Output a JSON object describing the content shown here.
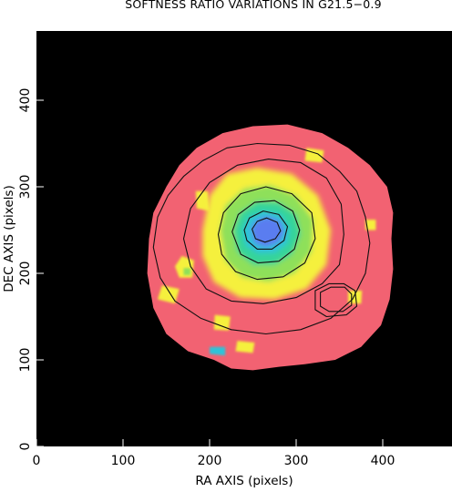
{
  "chart_data": {
    "type": "heatmap",
    "title": "SOFTNESS RATIO VARIATIONS IN G21.5−0.9",
    "xlabel": "RA AXIS (pixels)",
    "ylabel": "DEC AXIS (pixels)",
    "xlim": [
      0,
      480
    ],
    "ylim": [
      0,
      480
    ],
    "xticks": [
      0,
      100,
      200,
      300,
      400
    ],
    "yticks": [
      0,
      100,
      200,
      300,
      400
    ],
    "background_color": "#000000",
    "colormap": [
      {
        "level": "outer",
        "color": "#f26272"
      },
      {
        "level": "low",
        "color": "#f5f03c"
      },
      {
        "level": "mid",
        "color": "#8ee05a"
      },
      {
        "level": "mid-high",
        "color": "#36d49a"
      },
      {
        "level": "high",
        "color": "#2ec3d8"
      },
      {
        "level": "peak",
        "color": "#5a7df0"
      }
    ],
    "remnant_boundary": [
      [
        130,
        240
      ],
      [
        135,
        270
      ],
      [
        150,
        300
      ],
      [
        165,
        325
      ],
      [
        185,
        345
      ],
      [
        215,
        362
      ],
      [
        250,
        370
      ],
      [
        290,
        372
      ],
      [
        330,
        362
      ],
      [
        360,
        345
      ],
      [
        385,
        325
      ],
      [
        405,
        300
      ],
      [
        412,
        270
      ],
      [
        410,
        240
      ],
      [
        412,
        205
      ],
      [
        408,
        170
      ],
      [
        398,
        140
      ],
      [
        375,
        115
      ],
      [
        345,
        100
      ],
      [
        310,
        95
      ],
      [
        280,
        92
      ],
      [
        250,
        88
      ],
      [
        225,
        90
      ],
      [
        205,
        100
      ],
      [
        175,
        110
      ],
      [
        150,
        130
      ],
      [
        135,
        160
      ],
      [
        128,
        200
      ],
      [
        130,
        240
      ]
    ],
    "color_patches": [
      {
        "level": "low",
        "points": [
          [
            165,
            195
          ],
          [
            180,
            195
          ],
          [
            182,
            215
          ],
          [
            168,
            220
          ],
          [
            160,
            208
          ]
        ]
      },
      {
        "level": "low",
        "points": [
          [
            140,
            170
          ],
          [
            160,
            165
          ],
          [
            165,
            182
          ],
          [
            145,
            186
          ]
        ]
      },
      {
        "level": "low",
        "points": [
          [
            185,
            275
          ],
          [
            200,
            272
          ],
          [
            198,
            295
          ],
          [
            184,
            295
          ]
        ]
      },
      {
        "level": "low",
        "points": [
          [
            310,
            330
          ],
          [
            330,
            328
          ],
          [
            332,
            342
          ],
          [
            312,
            345
          ]
        ]
      },
      {
        "level": "low",
        "points": [
          [
            205,
            135
          ],
          [
            222,
            134
          ],
          [
            224,
            150
          ],
          [
            206,
            152
          ]
        ]
      },
      {
        "level": "low",
        "points": [
          [
            230,
            110
          ],
          [
            250,
            108
          ],
          [
            252,
            120
          ],
          [
            232,
            122
          ]
        ]
      },
      {
        "level": "low",
        "points": [
          [
            360,
            165
          ],
          [
            375,
            165
          ],
          [
            376,
            180
          ],
          [
            360,
            180
          ]
        ]
      },
      {
        "level": "low",
        "points": [
          [
            380,
            250
          ],
          [
            392,
            250
          ],
          [
            392,
            262
          ],
          [
            380,
            262
          ]
        ]
      },
      {
        "level": "mid",
        "points": [
          [
            170,
            198
          ],
          [
            178,
            198
          ],
          [
            178,
            206
          ],
          [
            170,
            206
          ]
        ]
      },
      {
        "level": "high",
        "points": [
          [
            200,
            107
          ],
          [
            218,
            105
          ],
          [
            218,
            115
          ],
          [
            200,
            115
          ]
        ]
      }
    ],
    "soft_core": [
      {
        "level": "low",
        "points": [
          [
            192,
            250
          ],
          [
            200,
            290
          ],
          [
            220,
            315
          ],
          [
            255,
            322
          ],
          [
            295,
            315
          ],
          [
            325,
            290
          ],
          [
            340,
            250
          ],
          [
            335,
            210
          ],
          [
            312,
            182
          ],
          [
            275,
            170
          ],
          [
            235,
            172
          ],
          [
            205,
            190
          ],
          [
            192,
            220
          ]
        ]
      },
      {
        "level": "mid",
        "points": [
          [
            212,
            250
          ],
          [
            218,
            278
          ],
          [
            240,
            298
          ],
          [
            270,
            302
          ],
          [
            300,
            290
          ],
          [
            320,
            262
          ],
          [
            318,
            225
          ],
          [
            298,
            200
          ],
          [
            268,
            190
          ],
          [
            238,
            195
          ],
          [
            218,
            215
          ]
        ]
      },
      {
        "level": "mid-high",
        "points": [
          [
            228,
            250
          ],
          [
            235,
            270
          ],
          [
            255,
            283
          ],
          [
            280,
            282
          ],
          [
            300,
            268
          ],
          [
            305,
            245
          ],
          [
            295,
            222
          ],
          [
            275,
            210
          ],
          [
            250,
            210
          ],
          [
            232,
            225
          ]
        ]
      },
      {
        "level": "high",
        "points": [
          [
            238,
            250
          ],
          [
            245,
            265
          ],
          [
            262,
            272
          ],
          [
            282,
            268
          ],
          [
            292,
            252
          ],
          [
            290,
            235
          ],
          [
            276,
            224
          ],
          [
            256,
            223
          ],
          [
            242,
            232
          ]
        ]
      },
      {
        "level": "peak",
        "points": [
          [
            248,
            252
          ],
          [
            255,
            262
          ],
          [
            268,
            266
          ],
          [
            282,
            260
          ],
          [
            286,
            247
          ],
          [
            280,
            236
          ],
          [
            265,
            230
          ],
          [
            252,
            235
          ]
        ]
      }
    ],
    "contours": [
      [
        [
          135,
          230
        ],
        [
          140,
          265
        ],
        [
          152,
          290
        ],
        [
          170,
          312
        ],
        [
          192,
          330
        ],
        [
          220,
          345
        ],
        [
          255,
          350
        ],
        [
          292,
          348
        ],
        [
          325,
          338
        ],
        [
          350,
          318
        ],
        [
          370,
          295
        ],
        [
          380,
          265
        ],
        [
          385,
          235
        ],
        [
          380,
          200
        ],
        [
          365,
          170
        ],
        [
          340,
          148
        ],
        [
          305,
          135
        ],
        [
          265,
          130
        ],
        [
          225,
          135
        ],
        [
          190,
          148
        ],
        [
          160,
          168
        ],
        [
          143,
          195
        ],
        [
          135,
          230
        ]
      ],
      [
        [
          170,
          240
        ],
        [
          178,
          275
        ],
        [
          200,
          305
        ],
        [
          232,
          325
        ],
        [
          268,
          332
        ],
        [
          305,
          328
        ],
        [
          335,
          310
        ],
        [
          352,
          280
        ],
        [
          355,
          245
        ],
        [
          350,
          210
        ],
        [
          330,
          188
        ],
        [
          300,
          172
        ],
        [
          262,
          165
        ],
        [
          225,
          168
        ],
        [
          196,
          182
        ],
        [
          178,
          208
        ],
        [
          170,
          240
        ]
      ],
      [
        [
          210,
          245
        ],
        [
          216,
          270
        ],
        [
          236,
          292
        ],
        [
          265,
          300
        ],
        [
          295,
          292
        ],
        [
          318,
          270
        ],
        [
          322,
          240
        ],
        [
          310,
          212
        ],
        [
          285,
          196
        ],
        [
          255,
          193
        ],
        [
          230,
          202
        ],
        [
          214,
          222
        ],
        [
          210,
          245
        ]
      ],
      [
        [
          226,
          248
        ],
        [
          233,
          268
        ],
        [
          252,
          282
        ],
        [
          275,
          284
        ],
        [
          296,
          272
        ],
        [
          304,
          250
        ],
        [
          298,
          228
        ],
        [
          280,
          214
        ],
        [
          256,
          212
        ],
        [
          236,
          222
        ],
        [
          226,
          248
        ]
      ],
      [
        [
          240,
          250
        ],
        [
          246,
          264
        ],
        [
          262,
          272
        ],
        [
          280,
          268
        ],
        [
          290,
          254
        ],
        [
          286,
          238
        ],
        [
          272,
          228
        ],
        [
          255,
          228
        ],
        [
          243,
          238
        ],
        [
          240,
          250
        ]
      ],
      [
        [
          249,
          251
        ],
        [
          255,
          260
        ],
        [
          266,
          264
        ],
        [
          278,
          259
        ],
        [
          282,
          249
        ],
        [
          276,
          240
        ],
        [
          264,
          236
        ],
        [
          253,
          240
        ],
        [
          249,
          251
        ]
      ]
    ],
    "point_source_contours": [
      [
        [
          322,
          158
        ],
        [
          322,
          180
        ],
        [
          338,
          188
        ],
        [
          355,
          188
        ],
        [
          368,
          180
        ],
        [
          370,
          162
        ],
        [
          358,
          152
        ],
        [
          335,
          150
        ],
        [
          322,
          158
        ]
      ],
      [
        [
          328,
          162
        ],
        [
          328,
          178
        ],
        [
          340,
          184
        ],
        [
          356,
          184
        ],
        [
          364,
          176
        ],
        [
          364,
          163
        ],
        [
          354,
          156
        ],
        [
          338,
          156
        ],
        [
          328,
          162
        ]
      ]
    ]
  }
}
